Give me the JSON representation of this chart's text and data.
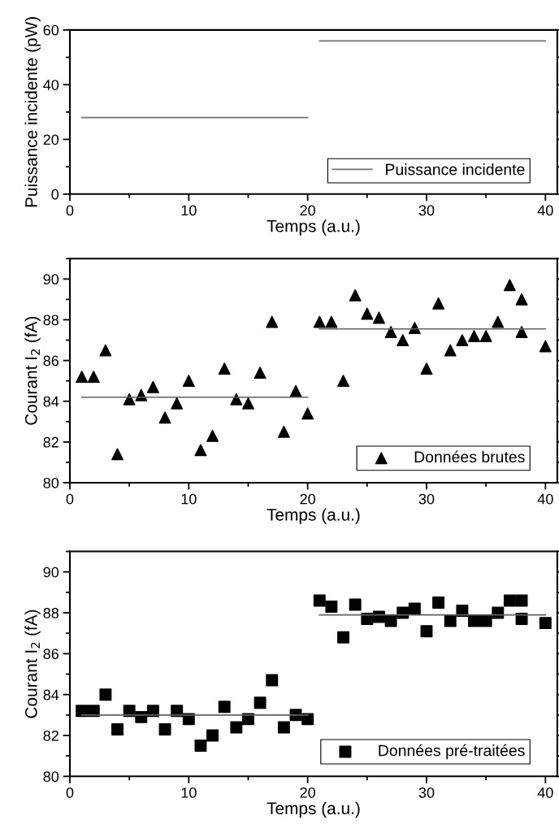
{
  "chart_data": [
    {
      "type": "line",
      "xlabel": "Temps (a.u.)",
      "ylabel": "Puissance incidente (pW)",
      "xlim": [
        0,
        41
      ],
      "xticks": [
        0,
        10,
        20,
        30,
        40
      ],
      "ylim": [
        0,
        60
      ],
      "yticks": [
        0,
        20,
        40,
        60
      ],
      "legend": "bottom right",
      "grid": false,
      "series": [
        {
          "name": "Puissance incidente",
          "color": "#707070",
          "x": [
            1,
            20
          ],
          "values": [
            28,
            28
          ]
        },
        {
          "color": "#707070",
          "x": [
            21,
            40
          ],
          "values": [
            56,
            56
          ]
        }
      ]
    },
    {
      "type": "scatter",
      "xlabel": "Temps (a.u.)",
      "ylabel": "Courant I$_{2}$ (fA)",
      "xlim": [
        0,
        41
      ],
      "xticks": [
        0,
        10,
        20,
        30,
        40
      ],
      "ylim": [
        80,
        91
      ],
      "yticks": [
        80,
        82,
        84,
        86,
        88,
        90
      ],
      "legend": "bottom right",
      "grid": false,
      "series": [
        {
          "name": "Données brutes",
          "marker": "triangle",
          "color": "#000000",
          "x": [
            1,
            2,
            3,
            4,
            5,
            6,
            7,
            8,
            9,
            10,
            11,
            12,
            13,
            14,
            15,
            16,
            17,
            18,
            19,
            20,
            21,
            22,
            23,
            24,
            25,
            26,
            27,
            28,
            29,
            30,
            31,
            32,
            33,
            34,
            35,
            36,
            37,
            38,
            38,
            40
          ],
          "values": [
            85.2,
            85.2,
            86.5,
            81.4,
            84.1,
            84.3,
            84.7,
            83.2,
            83.9,
            85.0,
            81.6,
            82.3,
            85.6,
            84.1,
            83.9,
            85.4,
            87.9,
            82.5,
            84.5,
            83.4,
            87.9,
            87.9,
            85.0,
            89.2,
            88.3,
            88.1,
            87.4,
            87.0,
            87.6,
            85.6,
            88.8,
            86.5,
            87.0,
            87.2,
            87.2,
            87.9,
            89.7,
            89.0,
            87.4,
            86.7
          ]
        },
        {
          "type": "line",
          "color": "#606060",
          "x": [
            1,
            20
          ],
          "values": [
            84.2,
            84.2
          ]
        },
        {
          "type": "line",
          "color": "#606060",
          "x": [
            21,
            40
          ],
          "values": [
            87.55,
            87.55
          ]
        }
      ]
    },
    {
      "type": "scatter",
      "xlabel": "Temps (a.u.)",
      "ylabel": "Courant I$_{2}$ (fA)",
      "xlim": [
        0,
        41
      ],
      "xticks": [
        0,
        10,
        20,
        30,
        40
      ],
      "ylim": [
        80,
        91
      ],
      "yticks": [
        80,
        82,
        84,
        86,
        88,
        90
      ],
      "legend": "bottom right",
      "grid": false,
      "series": [
        {
          "name": "Données pré-traitées",
          "marker": "square",
          "color": "#000000",
          "x": [
            1,
            2,
            3,
            4,
            5,
            6,
            7,
            8,
            9,
            10,
            11,
            12,
            13,
            14,
            15,
            16,
            17,
            18,
            19,
            20,
            21,
            22,
            23,
            24,
            25,
            26,
            27,
            28,
            29,
            30,
            31,
            32,
            33,
            34,
            35,
            36,
            37,
            38,
            38,
            40
          ],
          "values": [
            83.2,
            83.2,
            84.0,
            82.3,
            83.2,
            82.9,
            83.2,
            82.3,
            83.2,
            82.8,
            81.5,
            82.0,
            83.4,
            82.4,
            82.8,
            83.6,
            84.7,
            82.4,
            83.0,
            82.8,
            88.6,
            88.3,
            86.8,
            88.4,
            87.7,
            87.8,
            87.6,
            88.0,
            88.2,
            87.1,
            88.5,
            87.6,
            88.1,
            87.6,
            87.6,
            88.0,
            88.6,
            88.6,
            87.7,
            87.5
          ]
        },
        {
          "type": "line",
          "color": "#606060",
          "x": [
            1,
            20
          ],
          "values": [
            83.0,
            83.0
          ]
        },
        {
          "type": "line",
          "color": "#606060",
          "x": [
            21,
            40
          ],
          "values": [
            87.9,
            87.9
          ]
        }
      ]
    }
  ]
}
